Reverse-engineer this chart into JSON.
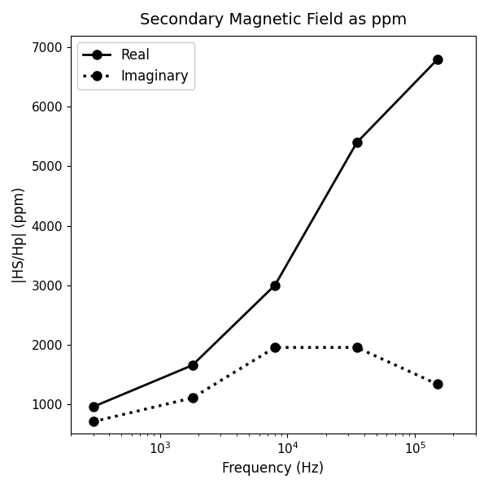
{
  "title": "Secondary Magnetic Field as ppm",
  "xlabel": "Frequency (Hz)",
  "ylabel": "|HS/Hp| (ppm)",
  "real_x": [
    300,
    1800,
    8000,
    35000,
    150000
  ],
  "real_y": [
    950,
    1650,
    3000,
    5400,
    6800
  ],
  "imag_x": [
    300,
    1800,
    8000,
    35000,
    150000
  ],
  "imag_y": [
    700,
    1100,
    1950,
    1950,
    1330
  ],
  "ylim": [
    500,
    7200
  ],
  "xlim_log": [
    200,
    300000
  ],
  "line_color": "#000000",
  "marker": "o",
  "marker_size": 8,
  "real_label": "Real",
  "imag_label": "Imaginary",
  "title_fontsize": 14,
  "label_fontsize": 12,
  "tick_fontsize": 11,
  "legend_fontsize": 12,
  "figsize": [
    6.0,
    6.0
  ],
  "dpi": 100
}
